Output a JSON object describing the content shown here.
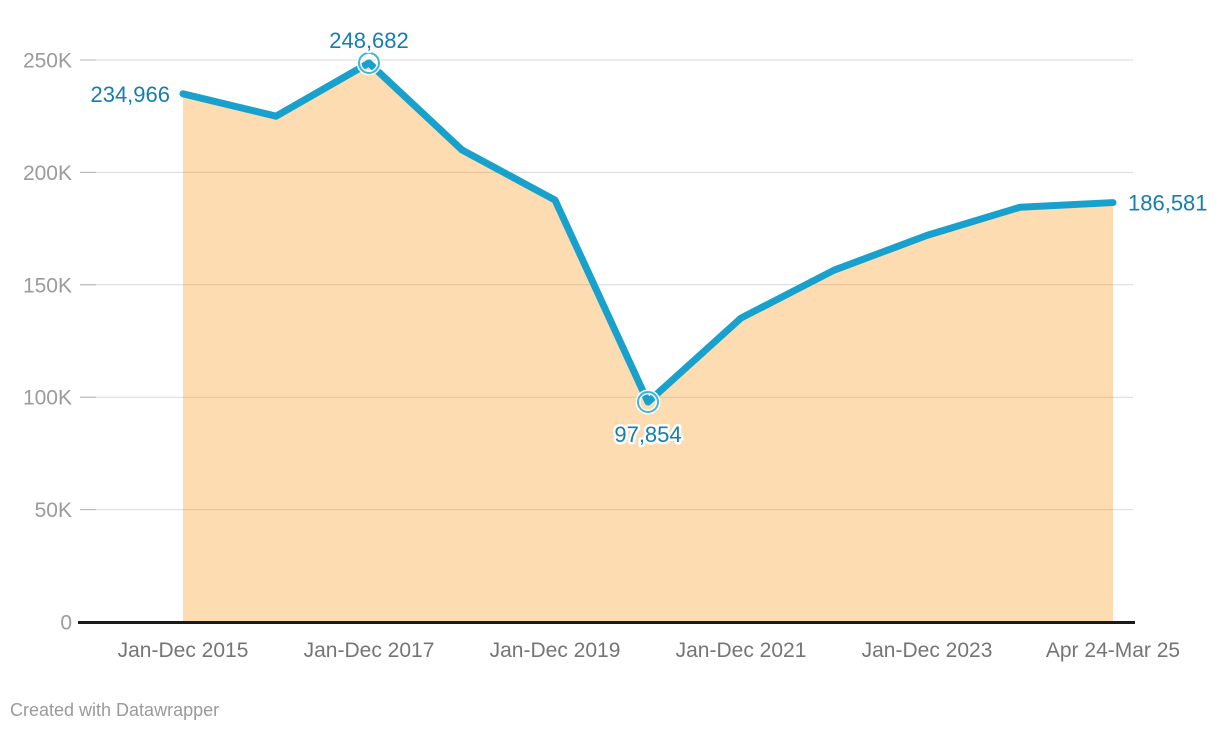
{
  "chart_data": {
    "type": "area",
    "title": "",
    "legend": "none",
    "grid": "horizontal-only",
    "ylim": [
      0,
      250000
    ],
    "series": [
      {
        "name": "value",
        "values": [
          234966,
          225000,
          248682,
          210000,
          187700,
          97854,
          135200,
          156500,
          172000,
          184500,
          186581
        ]
      }
    ],
    "x_tick_labels": [
      "Jan-Dec 2015",
      "Jan-Dec 2017",
      "Jan-Dec 2019",
      "Jan-Dec 2021",
      "Jan-Dec 2023",
      "Apr 24-Mar 25"
    ],
    "x_tick_indices": [
      0,
      2,
      4,
      6,
      8,
      10
    ],
    "y_ticks": [
      {
        "value": 0,
        "label": "0"
      },
      {
        "value": 50000,
        "label": "50K"
      },
      {
        "value": 100000,
        "label": "100K"
      },
      {
        "value": 150000,
        "label": "150K"
      },
      {
        "value": 200000,
        "label": "200K"
      },
      {
        "value": 250000,
        "label": "250K"
      }
    ],
    "value_labels": [
      {
        "index": 0,
        "text": "234,966",
        "placement": "left"
      },
      {
        "index": 2,
        "text": "248,682",
        "placement": "top"
      },
      {
        "index": 5,
        "text": "97,854",
        "placement": "bottom"
      },
      {
        "index": 10,
        "text": "186,581",
        "placement": "right"
      }
    ],
    "marker_indices": [
      2,
      5
    ],
    "colors": {
      "line": "#18a1cd",
      "area_fill": "rgba(246,155,29,0.35)",
      "value_label": "#157eae",
      "axis_line": "#1a1a1a",
      "gridline": "#d9d9d9",
      "tick_stub": "#b3b3b3",
      "y_tick_label": "#9b9b9b",
      "x_tick_label": "#757575"
    }
  },
  "footer": {
    "credit": "Created with Datawrapper"
  }
}
